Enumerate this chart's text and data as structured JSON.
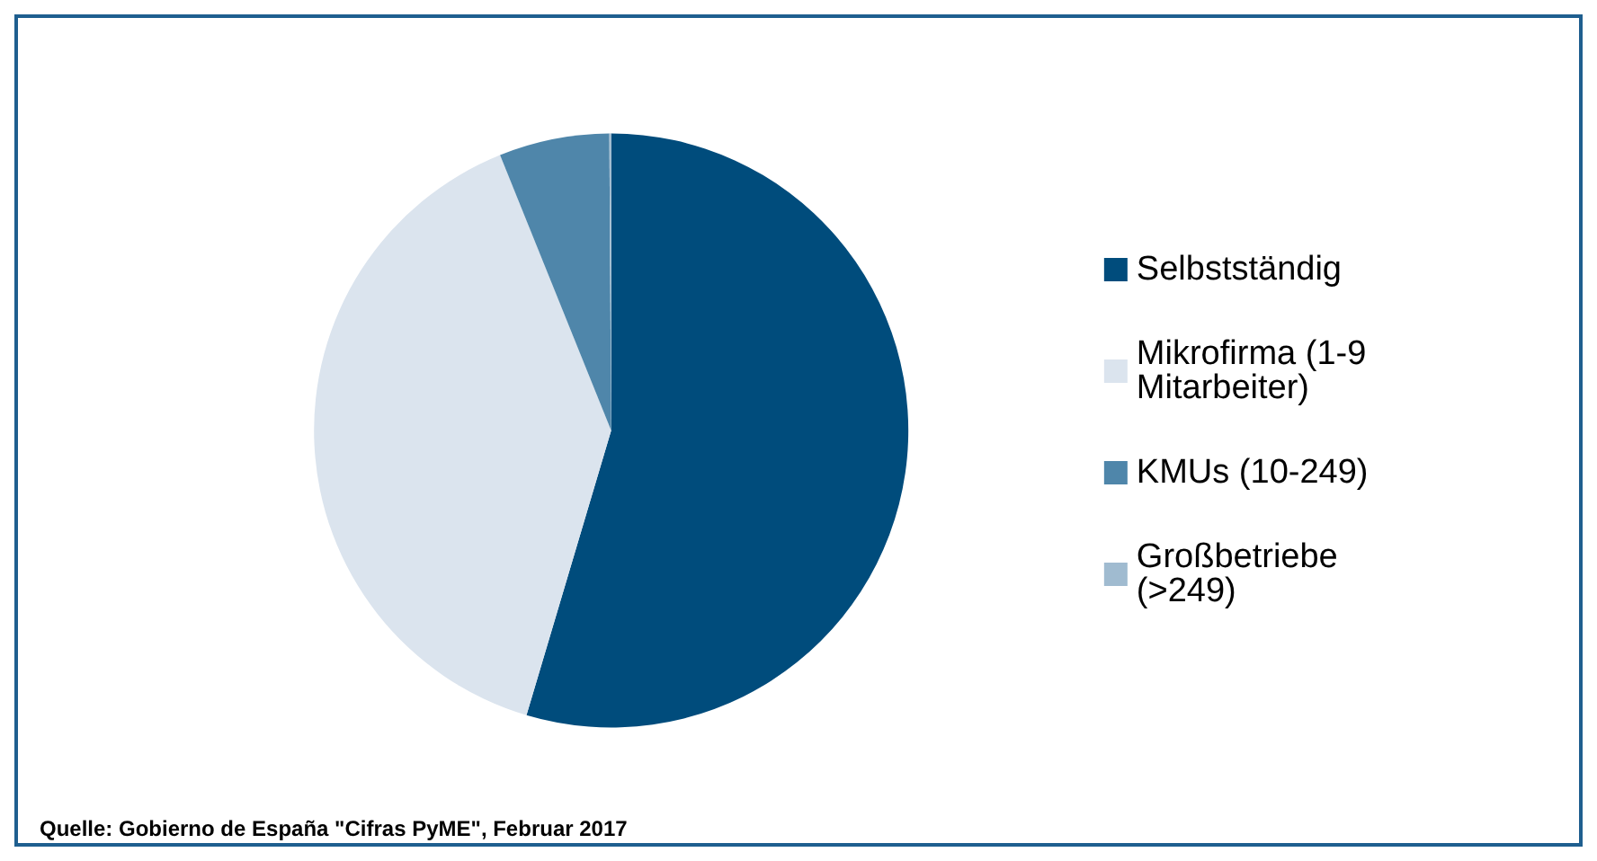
{
  "chart_data": {
    "type": "pie",
    "categories": [
      "Selbstständig",
      "Mikrofirma (1-9 Mitarbeiter)",
      "KMUs (10-249)",
      "Großbetriebe (>249)"
    ],
    "values": [
      54.6,
      39.3,
      6.0,
      0.1
    ],
    "colors": [
      "#004c7c",
      "#dbe4ee",
      "#4f86aa",
      "#a0bbd0"
    ],
    "legend": "right",
    "annotations": [
      "Quelle: Gobierno de España \"Cifras PyME\", Februar 2017"
    ]
  }
}
